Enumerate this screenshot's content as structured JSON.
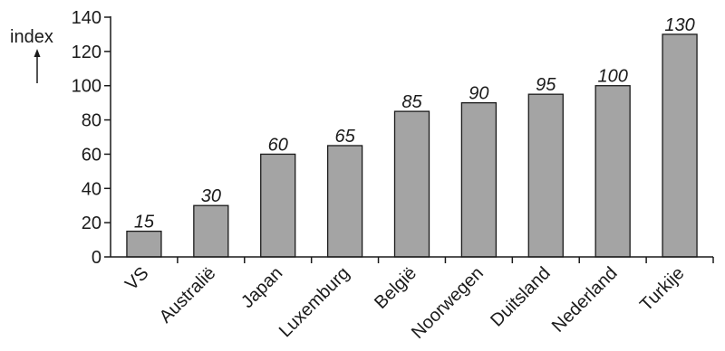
{
  "chart_data": {
    "type": "bar",
    "ylabel": "index",
    "categories": [
      "VS",
      "Australië",
      "Japan",
      "Luxemburg",
      "België",
      "Noorwegen",
      "Duitsland",
      "Nederland",
      "Turkije"
    ],
    "values": [
      15,
      30,
      60,
      65,
      85,
      90,
      95,
      100,
      130
    ],
    "data_labels": [
      "15",
      "30",
      "60",
      "65",
      "85",
      "90",
      "95",
      "100",
      "130"
    ],
    "ylim": [
      0,
      140
    ],
    "yticks": [
      0,
      20,
      40,
      60,
      80,
      100,
      120,
      140
    ],
    "ytick_labels": [
      "0",
      "20",
      "40",
      "60",
      "80",
      "100",
      "120",
      "140"
    ],
    "grid": false,
    "legend": "none",
    "colors": {
      "bar_fill": "#a4a4a4",
      "bar_stroke": "#1a1a1a",
      "axis": "#1a1a1a",
      "text": "#1a1a1a"
    }
  }
}
